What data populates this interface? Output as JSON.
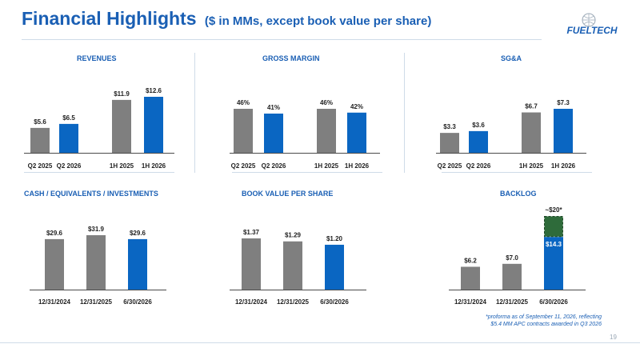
{
  "header": {
    "title": "Financial Highlights",
    "subtitle": "($ in MMs, except book value per share)",
    "logo_text": "FUELTECH"
  },
  "footnote": {
    "line1": "*proforma as of September 11, 2026, reflecting",
    "line2": "$5.4 MM APC contracts awarded in Q3 2026"
  },
  "page_number": "19",
  "colors": {
    "gray": "#7f7f7f",
    "blue": "#0a66c2",
    "title_blue": "#1a5fb4",
    "backlog_proforma": "#2e6b3a"
  },
  "chart_data": [
    {
      "type": "bar",
      "title": "REVENUES",
      "categories": [
        "Q2 2025",
        "Q2 2026",
        "1H 2025",
        "1H 2026"
      ],
      "values": [
        5.6,
        6.5,
        11.9,
        12.6
      ],
      "labels": [
        "$5.6",
        "$6.5",
        "$11.9",
        "$12.6"
      ],
      "colors": [
        "gray",
        "blue",
        "gray",
        "blue"
      ],
      "ylim": [
        0,
        12.6
      ]
    },
    {
      "type": "bar",
      "title": "GROSS MARGIN",
      "categories": [
        "Q2 2025",
        "Q2 2026",
        "1H 2025",
        "1H 2026"
      ],
      "values": [
        46,
        41,
        46,
        42
      ],
      "labels": [
        "46%",
        "41%",
        "46%",
        "42%"
      ],
      "colors": [
        "gray",
        "blue",
        "gray",
        "blue"
      ],
      "ylim": [
        0,
        46
      ]
    },
    {
      "type": "bar",
      "title": "SG&A",
      "categories": [
        "Q2 2025",
        "Q2 2026",
        "1H 2025",
        "1H 2026"
      ],
      "values": [
        3.3,
        3.6,
        6.7,
        7.3
      ],
      "labels": [
        "$3.3",
        "$3.6",
        "$6.7",
        "$7.3"
      ],
      "colors": [
        "gray",
        "blue",
        "gray",
        "blue"
      ],
      "ylim": [
        0,
        7.3
      ]
    },
    {
      "type": "bar",
      "title": "CASH / EQUIVALENTS / INVESTMENTS",
      "categories": [
        "12/31/2024",
        "12/31/2025",
        "6/30/2026"
      ],
      "values": [
        29.6,
        31.9,
        29.6
      ],
      "labels": [
        "$29.6",
        "$31.9",
        "$29.6"
      ],
      "colors": [
        "gray",
        "gray",
        "blue"
      ],
      "ylim": [
        0,
        31.9
      ]
    },
    {
      "type": "bar",
      "title": "BOOK VALUE PER SHARE",
      "categories": [
        "12/31/2024",
        "12/31/2025",
        "6/30/2026"
      ],
      "values": [
        1.37,
        1.29,
        1.2
      ],
      "labels": [
        "$1.37",
        "$1.29",
        "$1.20"
      ],
      "colors": [
        "gray",
        "gray",
        "blue"
      ],
      "ylim": [
        0,
        1.37
      ]
    },
    {
      "type": "bar",
      "title": "BACKLOG",
      "categories": [
        "12/31/2024",
        "12/31/2025",
        "6/30/2026"
      ],
      "values": [
        6.2,
        7.0,
        14.3
      ],
      "labels": [
        "$6.2",
        "$7.0",
        "$14.3"
      ],
      "colors": [
        "gray",
        "gray",
        "blue"
      ],
      "proforma_total": 20,
      "proforma_label": "~$20*",
      "ylim": [
        0,
        20
      ]
    }
  ]
}
